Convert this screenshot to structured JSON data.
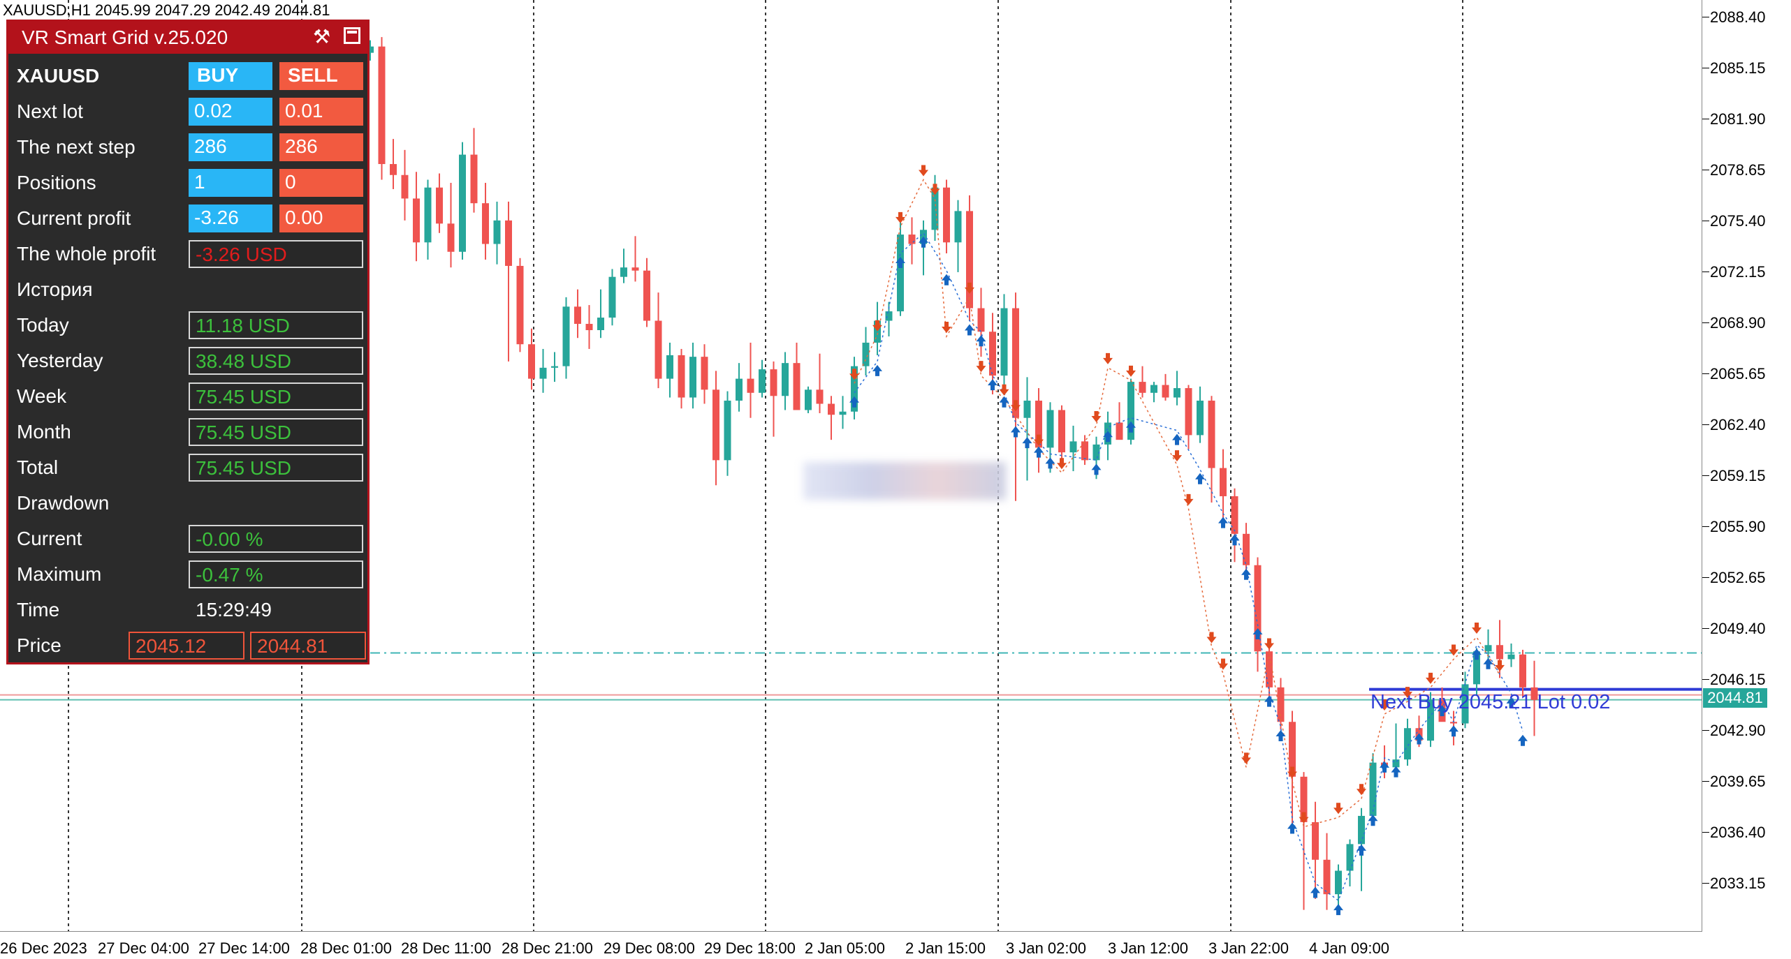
{
  "symbol_info": "XAUUSD,H1  2045.99 2047.29 2042.49 2044.81",
  "price_axis": [
    "2088.40",
    "2085.15",
    "2081.90",
    "2078.65",
    "2075.40",
    "2072.15",
    "2068.90",
    "2065.65",
    "2062.40",
    "2059.15",
    "2055.90",
    "2052.65",
    "2049.40",
    "2046.15",
    "2042.90",
    "2039.65",
    "2036.40",
    "2033.15"
  ],
  "current_price": "2044.81",
  "time_axis": [
    "26 Dec 2023",
    "27 Dec 04:00",
    "27 Dec 14:00",
    "28 Dec 01:00",
    "28 Dec 11:00",
    "28 Dec 21:00",
    "29 Dec 08:00",
    "29 Dec 18:00",
    "2 Jan 05:00",
    "2 Jan 15:00",
    "3 Jan 02:00",
    "3 Jan 12:00",
    "3 Jan 22:00",
    "4 Jan 09:00"
  ],
  "next_buy_label": "Next Buy 2045.21 Lot 0.02",
  "colors": {
    "bull": "#26a69a",
    "bear": "#ef5350",
    "buy_arrow": "#1565c0",
    "sell_arrow": "#e04a1e",
    "panel_bg": "#2b2b2b",
    "panel_title": "#b3121b",
    "buy_btn": "#29b6f6",
    "sell_btn": "#f25a40"
  },
  "panel": {
    "title": "VR Smart Grid v.25.020",
    "tools_icon": "tools-icon",
    "symbol": "XAUUSD",
    "buy_label": "BUY",
    "sell_label": "SELL",
    "rows": {
      "next_lot": {
        "label": "Next lot",
        "buy": "0.02",
        "sell": "0.01"
      },
      "next_step": {
        "label": "The next step",
        "buy": "286",
        "sell": "286"
      },
      "positions": {
        "label": "Positions",
        "buy": "1",
        "sell": "0"
      },
      "current_profit": {
        "label": "Current profit",
        "buy": "-3.26",
        "sell": "0.00"
      },
      "whole_profit": {
        "label": "The whole profit",
        "value": "-3.26 USD"
      }
    },
    "history_label": "История",
    "history": {
      "today": {
        "label": "Today",
        "value": "11.18 USD"
      },
      "yesterday": {
        "label": "Yesterday",
        "value": "38.48 USD"
      },
      "week": {
        "label": "Week",
        "value": "75.45 USD"
      },
      "month": {
        "label": "Month",
        "value": "75.45 USD"
      },
      "total": {
        "label": "Total",
        "value": "75.45 USD"
      }
    },
    "drawdown_label": "Drawdown",
    "drawdown": {
      "current": {
        "label": "Current",
        "value": "-0.00 %"
      },
      "maximum": {
        "label": "Maximum",
        "value": "-0.47 %"
      }
    },
    "time": {
      "label": "Time",
      "value": "15:29:49"
    },
    "price": {
      "label": "Price",
      "ask": "2045.12",
      "bid": "2044.81"
    }
  },
  "chart_data": {
    "type": "candlestick",
    "timeframe": "H1",
    "ylim": [
      2030.5,
      2089.6
    ],
    "candles": [
      [
        2086.1,
        2086.9,
        2085.6,
        2086.5
      ],
      [
        2086.5,
        2087.1,
        2078.0,
        2079.0
      ],
      [
        2079.0,
        2080.6,
        2077.4,
        2078.3
      ],
      [
        2078.3,
        2079.9,
        2075.4,
        2076.8
      ],
      [
        2076.8,
        2078.5,
        2072.8,
        2074.0
      ],
      [
        2074.0,
        2078.0,
        2072.9,
        2077.5
      ],
      [
        2077.5,
        2078.4,
        2074.6,
        2075.2
      ],
      [
        2075.2,
        2077.8,
        2072.4,
        2073.4
      ],
      [
        2073.4,
        2080.4,
        2072.9,
        2079.6
      ],
      [
        2079.6,
        2081.3,
        2075.9,
        2076.5
      ],
      [
        2076.5,
        2077.8,
        2072.9,
        2073.9
      ],
      [
        2073.9,
        2076.6,
        2072.6,
        2075.4
      ],
      [
        2075.4,
        2076.6,
        2066.4,
        2072.5
      ],
      [
        2072.5,
        2073.0,
        2067.0,
        2067.5
      ],
      [
        2067.5,
        2068.5,
        2064.6,
        2065.3
      ],
      [
        2065.3,
        2067.2,
        2064.4,
        2066.0
      ],
      [
        2066.0,
        2067.0,
        2065.1,
        2066.1
      ],
      [
        2066.1,
        2070.5,
        2065.3,
        2069.9
      ],
      [
        2069.9,
        2071.0,
        2067.9,
        2068.8
      ],
      [
        2068.8,
        2070.0,
        2067.2,
        2068.4
      ],
      [
        2068.4,
        2071.0,
        2067.9,
        2069.2
      ],
      [
        2069.2,
        2072.3,
        2068.7,
        2071.8
      ],
      [
        2071.8,
        2073.6,
        2071.4,
        2072.4
      ],
      [
        2072.4,
        2074.4,
        2071.5,
        2072.2
      ],
      [
        2072.2,
        2073.0,
        2068.6,
        2069.0
      ],
      [
        2069.0,
        2070.8,
        2064.7,
        2065.3
      ],
      [
        2065.3,
        2067.6,
        2064.1,
        2066.8
      ],
      [
        2066.8,
        2067.2,
        2063.4,
        2064.1
      ],
      [
        2064.1,
        2067.6,
        2063.4,
        2066.7
      ],
      [
        2066.7,
        2067.5,
        2063.7,
        2064.6
      ],
      [
        2064.6,
        2065.8,
        2058.5,
        2060.1
      ],
      [
        2060.1,
        2064.5,
        2059.1,
        2063.9
      ],
      [
        2063.9,
        2066.3,
        2063.2,
        2065.3
      ],
      [
        2065.3,
        2067.6,
        2062.8,
        2064.4
      ],
      [
        2064.4,
        2066.5,
        2064.1,
        2065.9
      ],
      [
        2065.9,
        2066.4,
        2061.6,
        2064.2
      ],
      [
        2064.2,
        2067.0,
        2063.3,
        2066.3
      ],
      [
        2066.3,
        2067.6,
        2063.4,
        2063.3
      ],
      [
        2063.3,
        2064.8,
        2063.1,
        2064.6
      ],
      [
        2064.6,
        2066.9,
        2063.1,
        2063.7
      ],
      [
        2063.7,
        2064.2,
        2061.4,
        2063.0
      ],
      [
        2063.0,
        2064.2,
        2062.1,
        2063.2
      ],
      [
        2063.2,
        2066.7,
        2062.7,
        2066.1
      ],
      [
        2066.1,
        2068.6,
        2065.5,
        2067.6
      ],
      [
        2067.6,
        2070.2,
        2066.8,
        2069.0
      ],
      [
        2069.0,
        2070.2,
        2068.0,
        2069.6
      ],
      [
        2069.6,
        2075.3,
        2069.3,
        2074.5
      ],
      [
        2074.5,
        2075.6,
        2072.6,
        2073.9
      ],
      [
        2073.9,
        2075.4,
        2071.9,
        2074.8
      ],
      [
        2074.8,
        2078.3,
        2074.1,
        2077.5
      ],
      [
        2077.5,
        2078.0,
        2073.3,
        2074.0
      ],
      [
        2074.0,
        2076.7,
        2072.1,
        2076.0
      ],
      [
        2076.0,
        2077.0,
        2069.0,
        2069.8
      ],
      [
        2069.8,
        2071.1,
        2066.7,
        2068.3
      ],
      [
        2068.3,
        2069.5,
        2064.3,
        2065.5
      ],
      [
        2065.5,
        2070.7,
        2064.8,
        2069.8
      ],
      [
        2069.8,
        2070.8,
        2057.5,
        2062.8
      ],
      [
        2062.8,
        2065.4,
        2058.8,
        2063.9
      ],
      [
        2063.9,
        2064.7,
        2059.3,
        2060.9
      ],
      [
        2060.9,
        2063.8,
        2059.3,
        2063.3
      ],
      [
        2063.3,
        2063.6,
        2059.8,
        2060.6
      ],
      [
        2060.6,
        2062.3,
        2059.4,
        2061.3
      ],
      [
        2061.3,
        2061.7,
        2059.8,
        2060.1
      ],
      [
        2060.1,
        2061.6,
        2058.9,
        2061.1
      ],
      [
        2061.1,
        2063.2,
        2060.1,
        2062.5
      ],
      [
        2062.5,
        2063.8,
        2061.9,
        2061.4
      ],
      [
        2061.4,
        2065.3,
        2061.1,
        2065.1
      ],
      [
        2065.1,
        2066.1,
        2064.1,
        2064.4
      ],
      [
        2064.4,
        2065.1,
        2063.8,
        2064.9
      ],
      [
        2064.9,
        2065.6,
        2063.9,
        2064.1
      ],
      [
        2064.1,
        2065.8,
        2063.6,
        2064.7
      ],
      [
        2064.7,
        2064.9,
        2060.8,
        2061.7
      ],
      [
        2061.7,
        2064.8,
        2061.2,
        2063.9
      ],
      [
        2063.9,
        2064.2,
        2057.4,
        2059.6
      ],
      [
        2059.6,
        2060.8,
        2056.2,
        2057.8
      ],
      [
        2057.8,
        2058.3,
        2053.6,
        2055.4
      ],
      [
        2055.4,
        2056.1,
        2052.6,
        2053.4
      ],
      [
        2053.4,
        2053.9,
        2046.6,
        2047.9
      ],
      [
        2047.9,
        2048.4,
        2044.6,
        2045.6
      ],
      [
        2045.6,
        2046.2,
        2042.9,
        2043.4
      ],
      [
        2043.4,
        2044.1,
        2036.9,
        2039.9
      ],
      [
        2039.9,
        2040.2,
        2031.4,
        2037.0
      ],
      [
        2037.0,
        2038.3,
        2032.1,
        2034.6
      ],
      [
        2034.6,
        2036.3,
        2031.4,
        2032.4
      ],
      [
        2032.4,
        2034.3,
        2031.6,
        2033.9
      ],
      [
        2033.9,
        2035.9,
        2032.9,
        2035.6
      ],
      [
        2035.6,
        2037.9,
        2032.6,
        2037.4
      ],
      [
        2037.4,
        2041.4,
        2036.8,
        2040.8
      ],
      [
        2040.8,
        2041.9,
        2039.8,
        2040.5
      ],
      [
        2040.5,
        2043.3,
        2040.4,
        2041.0
      ],
      [
        2041.0,
        2043.6,
        2040.6,
        2043.0
      ],
      [
        2043.0,
        2043.8,
        2041.8,
        2042.2
      ],
      [
        2042.2,
        2045.3,
        2041.8,
        2044.8
      ],
      [
        2044.8,
        2045.6,
        2043.5,
        2043.4
      ],
      [
        2043.4,
        2044.1,
        2041.9,
        2043.3
      ],
      [
        2043.3,
        2046.6,
        2043.0,
        2045.8
      ],
      [
        2045.8,
        2048.1,
        2045.1,
        2047.9
      ],
      [
        2047.9,
        2049.3,
        2047.1,
        2048.3
      ],
      [
        2048.3,
        2049.9,
        2046.2,
        2047.4
      ],
      [
        2047.4,
        2048.4,
        2046.9,
        2047.7
      ],
      [
        2047.7,
        2048.0,
        2045.0,
        2045.6
      ],
      [
        2045.6,
        2047.3,
        2042.5,
        2044.8
      ]
    ],
    "ask_line": 2045.12,
    "bid_line": 2044.81,
    "next_buy_level": 2045.21,
    "grid_target_level": 2047.8,
    "buy_arrows": [
      [
        42,
        2064.4
      ],
      [
        44,
        2066.4
      ],
      [
        46,
        2073.3
      ],
      [
        48,
        2074.6
      ],
      [
        50,
        2072.2
      ],
      [
        52,
        2069.0
      ],
      [
        53,
        2068.3
      ],
      [
        54,
        2065.5
      ],
      [
        55,
        2064.4
      ],
      [
        56,
        2062.5
      ],
      [
        57,
        2061.8
      ],
      [
        58,
        2061.2
      ],
      [
        59,
        2060.5
      ],
      [
        63,
        2060.1
      ],
      [
        64,
        2062.2
      ],
      [
        66,
        2062.8
      ],
      [
        70,
        2062.0
      ],
      [
        72,
        2059.5
      ],
      [
        74,
        2056.7
      ],
      [
        75,
        2055.6
      ],
      [
        76,
        2053.4
      ],
      [
        77,
        2049.6
      ],
      [
        78,
        2045.3
      ],
      [
        79,
        2043.1
      ],
      [
        80,
        2037.2
      ],
      [
        82,
        2033.1
      ],
      [
        84,
        2032.0
      ],
      [
        86,
        2035.8
      ],
      [
        87,
        2037.7
      ],
      [
        88,
        2041.1
      ],
      [
        89,
        2040.8
      ],
      [
        91,
        2042.9
      ],
      [
        93,
        2044.7
      ],
      [
        94,
        2043.4
      ],
      [
        96,
        2048.3
      ],
      [
        97,
        2047.7
      ],
      [
        99,
        2045.2
      ],
      [
        100,
        2042.8
      ]
    ],
    "sell_arrows": [
      [
        42,
        2065.0
      ],
      [
        44,
        2068.1
      ],
      [
        46,
        2075.0
      ],
      [
        48,
        2078.0
      ],
      [
        49,
        2076.8
      ],
      [
        50,
        2068.0
      ],
      [
        52,
        2070.5
      ],
      [
        53,
        2065.5
      ],
      [
        55,
        2064.0
      ],
      [
        56,
        2063.0
      ],
      [
        58,
        2060.8
      ],
      [
        60,
        2059.3
      ],
      [
        63,
        2062.3
      ],
      [
        64,
        2066.0
      ],
      [
        66,
        2065.2
      ],
      [
        70,
        2059.8
      ],
      [
        71,
        2057.0
      ],
      [
        73,
        2048.2
      ],
      [
        74,
        2046.5
      ],
      [
        76,
        2040.5
      ],
      [
        78,
        2047.8
      ],
      [
        80,
        2039.6
      ],
      [
        81,
        2036.7
      ],
      [
        84,
        2037.3
      ],
      [
        86,
        2038.5
      ],
      [
        88,
        2043.9
      ],
      [
        90,
        2044.7
      ],
      [
        92,
        2045.6
      ],
      [
        94,
        2047.4
      ],
      [
        96,
        2048.8
      ],
      [
        98,
        2046.4
      ]
    ]
  }
}
